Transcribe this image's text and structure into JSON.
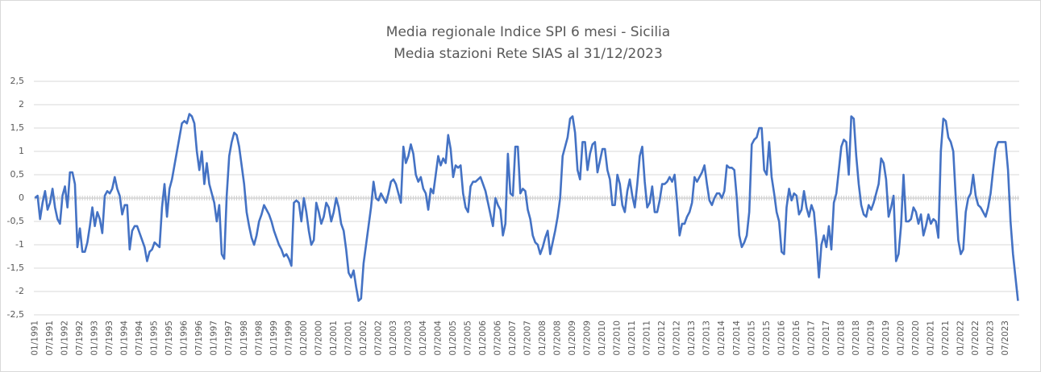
{
  "chart_data": {
    "type": "line",
    "title": "Media regionale Indice SPI 6 mesi - Sicilia",
    "subtitle": "Media stazioni Rete SIAS al 31/12/2023",
    "categories": [
      "01/1991",
      null,
      null,
      null,
      null,
      null,
      "07/1991",
      null,
      null,
      null,
      null,
      null,
      "01/1992",
      null,
      null,
      null,
      null,
      null,
      "07/1992",
      null,
      null,
      null,
      null,
      null,
      "01/1993",
      null,
      null,
      null,
      null,
      null,
      "07/1993",
      null,
      null,
      null,
      null,
      null,
      "01/1994",
      null,
      null,
      null,
      null,
      null,
      "07/1994",
      null,
      null,
      null,
      null,
      null,
      "01/1995",
      null,
      null,
      null,
      null,
      null,
      "07/1995",
      null,
      null,
      null,
      null,
      null,
      "01/1996",
      null,
      null,
      null,
      null,
      null,
      "07/1996",
      null,
      null,
      null,
      null,
      null,
      "01/1997",
      null,
      null,
      null,
      null,
      null,
      "07/1997",
      null,
      null,
      null,
      null,
      null,
      "01/1998",
      null,
      null,
      null,
      null,
      null,
      "07/1998",
      null,
      null,
      null,
      null,
      null,
      "01/1999",
      null,
      null,
      null,
      null,
      null,
      "07/1999",
      null,
      null,
      null,
      null,
      null,
      "01/2000",
      null,
      null,
      null,
      null,
      null,
      "07/2000",
      null,
      null,
      null,
      null,
      null,
      "01/2001",
      null,
      null,
      null,
      null,
      null,
      "07/2001",
      null,
      null,
      null,
      null,
      null,
      "01/2002",
      null,
      null,
      null,
      null,
      null,
      "07/2002",
      null,
      null,
      null,
      null,
      null,
      "01/2003",
      null,
      null,
      null,
      null,
      null,
      "07/2003",
      null,
      null,
      null,
      null,
      null,
      "01/2004",
      null,
      null,
      null,
      null,
      null,
      "07/2004",
      null,
      null,
      null,
      null,
      null,
      "01/2005",
      null,
      null,
      null,
      null,
      null,
      "07/2005",
      null,
      null,
      null,
      null,
      null,
      "01/2006",
      null,
      null,
      null,
      null,
      null,
      "07/2006",
      null,
      null,
      null,
      null,
      null,
      "01/2007",
      null,
      null,
      null,
      null,
      null,
      "07/2007",
      null,
      null,
      null,
      null,
      null,
      "01/2008",
      null,
      null,
      null,
      null,
      null,
      "07/2008",
      null,
      null,
      null,
      null,
      null,
      "01/2009",
      null,
      null,
      null,
      null,
      null,
      "07/2009",
      null,
      null,
      null,
      null,
      null,
      "01/2010",
      null,
      null,
      null,
      null,
      null,
      "07/2010",
      null,
      null,
      null,
      null,
      null,
      "01/2011",
      null,
      null,
      null,
      null,
      null,
      "07/2011",
      null,
      null,
      null,
      null,
      null,
      "01/2012",
      null,
      null,
      null,
      null,
      null,
      "07/2012",
      null,
      null,
      null,
      null,
      null,
      "01/2013",
      null,
      null,
      null,
      null,
      null,
      "07/2013",
      null,
      null,
      null,
      null,
      null,
      "01/2014",
      null,
      null,
      null,
      null,
      null,
      "07/2014",
      null,
      null,
      null,
      null,
      null,
      "01/2015",
      null,
      null,
      null,
      null,
      null,
      "07/2015",
      null,
      null,
      null,
      null,
      null,
      "01/2016",
      null,
      null,
      null,
      null,
      null,
      "07/2016",
      null,
      null,
      null,
      null,
      null,
      "01/2017",
      null,
      null,
      null,
      null,
      null,
      "07/2017",
      null,
      null,
      null,
      null,
      null,
      "01/2018",
      null,
      null,
      null,
      null,
      null,
      "07/2018",
      null,
      null,
      null,
      null,
      null,
      "01/2019",
      null,
      null,
      null,
      null,
      null,
      "07/2019",
      null,
      null,
      null,
      null,
      null,
      "01/2020",
      null,
      null,
      null,
      null,
      null,
      "07/2020",
      null,
      null,
      null,
      null,
      null,
      "01/2021",
      null,
      null,
      null,
      null,
      null,
      "07/2021",
      null,
      null,
      null,
      null,
      null,
      "01/2022",
      null,
      null,
      null,
      null,
      null,
      "07/2022",
      null,
      null,
      null,
      null,
      null,
      "01/2023",
      null,
      null,
      null,
      null,
      null,
      "07/2023",
      null,
      null,
      null,
      null,
      null
    ],
    "values": [
      0,
      0.05,
      -0.45,
      -0.1,
      0.15,
      -0.25,
      -0.1,
      0.2,
      -0.2,
      -0.45,
      -0.55,
      0.05,
      0.25,
      -0.2,
      0.55,
      0.55,
      0.3,
      -1.05,
      -0.65,
      -1.15,
      -1.15,
      -0.95,
      -0.6,
      -0.2,
      -0.6,
      -0.3,
      -0.45,
      -0.75,
      0.05,
      0.15,
      0.1,
      0.2,
      0.45,
      0.2,
      0.05,
      -0.35,
      -0.15,
      -0.15,
      -1.1,
      -0.7,
      -0.6,
      -0.6,
      -0.75,
      -0.9,
      -1.05,
      -1.35,
      -1.15,
      -1.1,
      -0.95,
      -1.0,
      -1.05,
      -0.2,
      0.3,
      -0.4,
      0.2,
      0.4,
      0.7,
      1.0,
      1.3,
      1.6,
      1.65,
      1.6,
      1.8,
      1.75,
      1.6,
      1.0,
      0.6,
      1.0,
      0.3,
      0.75,
      0.3,
      0.1,
      -0.1,
      -0.5,
      -0.15,
      -1.2,
      -1.3,
      0.05,
      0.9,
      1.2,
      1.4,
      1.35,
      1.1,
      0.7,
      0.3,
      -0.3,
      -0.6,
      -0.85,
      -1.0,
      -0.8,
      -0.5,
      -0.35,
      -0.15,
      -0.25,
      -0.35,
      -0.5,
      -0.7,
      -0.85,
      -1.0,
      -1.1,
      -1.25,
      -1.2,
      -1.3,
      -1.45,
      -0.1,
      -0.05,
      -0.1,
      -0.5,
      0.0,
      -0.3,
      -0.7,
      -1.0,
      -0.9,
      -0.1,
      -0.3,
      -0.55,
      -0.4,
      -0.1,
      -0.2,
      -0.5,
      -0.3,
      0.0,
      -0.2,
      -0.55,
      -0.7,
      -1.1,
      -1.6,
      -1.7,
      -1.55,
      -1.9,
      -2.2,
      -2.15,
      -1.4,
      -1.0,
      -0.6,
      -0.2,
      0.35,
      0.0,
      -0.05,
      0.1,
      0.0,
      -0.1,
      0.1,
      0.35,
      0.4,
      0.3,
      0.1,
      -0.1,
      1.1,
      0.75,
      0.9,
      1.15,
      0.95,
      0.5,
      0.35,
      0.45,
      0.2,
      0.1,
      -0.25,
      0.2,
      0.1,
      0.5,
      0.9,
      0.7,
      0.85,
      0.75,
      1.35,
      1.05,
      0.45,
      0.7,
      0.65,
      0.7,
      0.1,
      -0.2,
      -0.3,
      0.25,
      0.35,
      0.35,
      0.4,
      0.45,
      0.3,
      0.15,
      -0.1,
      -0.35,
      -0.6,
      0.0,
      -0.15,
      -0.25,
      -0.8,
      -0.55,
      0.95,
      0.1,
      0.05,
      1.1,
      1.1,
      0.1,
      0.2,
      0.15,
      -0.25,
      -0.45,
      -0.8,
      -0.95,
      -1.0,
      -1.2,
      -1.05,
      -0.85,
      -0.7,
      -1.2,
      -0.95,
      -0.7,
      -0.4,
      0.0,
      0.9,
      1.1,
      1.3,
      1.7,
      1.75,
      1.4,
      0.6,
      0.4,
      1.2,
      1.2,
      0.6,
      0.95,
      1.15,
      1.2,
      0.55,
      0.8,
      1.05,
      1.05,
      0.6,
      0.4,
      -0.15,
      -0.15,
      0.5,
      0.3,
      -0.15,
      -0.3,
      0.15,
      0.4,
      0.05,
      -0.2,
      0.3,
      0.9,
      1.1,
      0.35,
      -0.2,
      -0.1,
      0.25,
      -0.3,
      -0.3,
      -0.05,
      0.3,
      0.3,
      0.35,
      0.45,
      0.35,
      0.5,
      -0.1,
      -0.8,
      -0.55,
      -0.55,
      -0.4,
      -0.3,
      -0.1,
      0.45,
      0.35,
      0.45,
      0.55,
      0.7,
      0.3,
      -0.05,
      -0.15,
      0.0,
      0.1,
      0.1,
      0.0,
      0.15,
      0.7,
      0.65,
      0.65,
      0.6,
      0.0,
      -0.8,
      -1.05,
      -0.95,
      -0.8,
      -0.3,
      1.15,
      1.25,
      1.3,
      1.5,
      1.5,
      0.6,
      0.5,
      1.2,
      0.45,
      0.1,
      -0.3,
      -0.5,
      -1.15,
      -1.2,
      -0.2,
      0.2,
      -0.05,
      0.1,
      0.05,
      -0.35,
      -0.25,
      0.15,
      -0.2,
      -0.4,
      -0.15,
      -0.3,
      -0.9,
      -1.7,
      -1.0,
      -0.8,
      -1.05,
      -0.6,
      -1.1,
      -0.1,
      0.1,
      0.6,
      1.1,
      1.25,
      1.2,
      0.5,
      1.75,
      1.7,
      0.9,
      0.3,
      -0.15,
      -0.35,
      -0.4,
      -0.15,
      -0.25,
      -0.1,
      0.1,
      0.3,
      0.85,
      0.75,
      0.4,
      -0.4,
      -0.2,
      0.05,
      -1.35,
      -1.2,
      -0.6,
      0.5,
      -0.5,
      -0.5,
      -0.45,
      -0.2,
      -0.3,
      -0.55,
      -0.35,
      -0.8,
      -0.6,
      -0.35,
      -0.55,
      -0.45,
      -0.5,
      -0.85,
      1.0,
      1.7,
      1.65,
      1.3,
      1.2,
      1.0,
      0.0,
      -0.9,
      -1.2,
      -1.1,
      -0.3,
      0.0,
      0.1,
      0.5,
      0.05,
      -0.15,
      -0.2,
      -0.3,
      -0.4,
      -0.2,
      0.1,
      0.6,
      1.05,
      1.2,
      1.2,
      1.2,
      1.2,
      0.6,
      -0.5,
      -1.2,
      -1.7,
      -2.2
    ],
    "color": "#4472c4",
    "ylim": [
      -2.5,
      2.5
    ],
    "yticks": [
      {
        "value": -2.5,
        "label": "-2,5"
      },
      -2,
      {
        "value": -1.5,
        "label": "-1,5"
      },
      -1,
      {
        "value": -0.5,
        "label": "-0,5"
      },
      0,
      {
        "value": 0.5,
        "label": "0,5"
      },
      1,
      {
        "value": 1.5,
        "label": "1,5"
      },
      2,
      {
        "value": 2.5,
        "label": "2,5"
      }
    ],
    "grid": true
  }
}
